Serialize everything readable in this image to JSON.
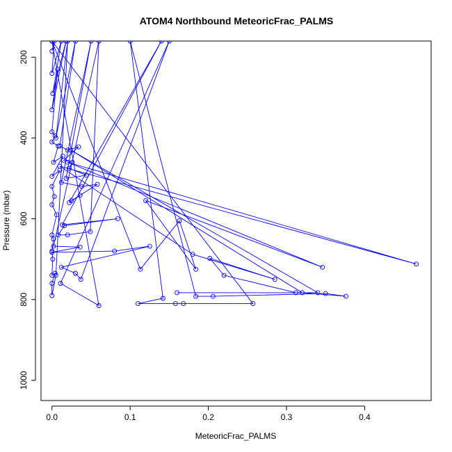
{
  "chart_data": {
    "type": "line",
    "title": "ATOM4 Northbound MeteoricFrac_PALMS",
    "xlabel": "MeteoricFrac_PALMS",
    "ylabel": "Pressure (mbar)",
    "xlim": [
      -0.014,
      0.485
    ],
    "ylim": [
      1050,
      160
    ],
    "y_reversed": true,
    "x_ticks": [
      0.0,
      0.1,
      0.2,
      0.3,
      0.4
    ],
    "x_tick_labels": [
      "0.0",
      "0.1",
      "0.2",
      "0.3",
      "0.4"
    ],
    "y_ticks": [
      200,
      400,
      600,
      800,
      1000
    ],
    "y_tick_labels": [
      "200",
      "400",
      "600",
      "800",
      "1000"
    ],
    "grid": false,
    "colors": {
      "series": "#0000ff",
      "axis": "#000000"
    },
    "series": [
      {
        "points": [
          [
            0.0,
            185
          ],
          [
            0.003,
            160
          ],
          [
            0.0,
            240
          ],
          [
            0.012,
            160
          ],
          [
            0.001,
            290
          ],
          [
            0.018,
            160
          ],
          [
            0.0,
            330
          ],
          [
            0.007,
            230
          ],
          [
            0.0,
            385
          ],
          [
            0.004,
            395
          ],
          [
            0.0,
            410
          ],
          [
            0.008,
            420
          ],
          [
            0.002,
            460
          ],
          [
            0.014,
            445
          ],
          [
            0.0,
            495
          ],
          [
            0.01,
            480
          ],
          [
            0.0,
            520
          ],
          [
            0.003,
            545
          ],
          [
            0.0,
            565
          ],
          [
            0.006,
            590
          ],
          [
            0.0,
            640
          ],
          [
            0.002,
            650
          ],
          [
            0.0,
            680
          ],
          [
            0.001,
            700
          ],
          [
            0.0,
            740
          ],
          [
            0.004,
            735
          ],
          [
            0.0,
            760
          ],
          [
            0.0,
            790
          ],
          [
            0.005,
            740
          ],
          [
            0.02,
            160
          ],
          [
            0.005,
            400
          ],
          [
            0.03,
            160
          ],
          [
            0.01,
            420
          ],
          [
            0.02,
            430
          ],
          [
            0.034,
            422
          ],
          [
            0.015,
            455
          ],
          [
            0.026,
            460
          ],
          [
            0.022,
            475
          ],
          [
            0.044,
            492
          ],
          [
            0.018,
            500
          ],
          [
            0.05,
            160
          ],
          [
            0.012,
            510
          ],
          [
            0.038,
            520
          ],
          [
            0.058,
            515
          ],
          [
            0.025,
            555
          ],
          [
            0.036,
            542
          ],
          [
            0.022,
            560
          ],
          [
            0.14,
            160
          ],
          [
            0.013,
            615
          ],
          [
            0.084,
            600
          ],
          [
            0.016,
            617
          ],
          [
            0.008,
            640
          ],
          [
            0.02,
            640
          ],
          [
            0.049,
            632
          ],
          [
            0.06,
            160
          ],
          [
            0.002,
            668
          ],
          [
            0.036,
            670
          ],
          [
            0.0,
            683
          ],
          [
            0.08,
            680
          ],
          [
            0.125,
            668
          ],
          [
            0.012,
            720
          ],
          [
            0.03,
            735
          ],
          [
            0.037,
            750
          ],
          [
            0.15,
            160
          ],
          [
            0.011,
            760
          ],
          [
            0.06,
            815
          ],
          [
            0.0,
            160
          ],
          [
            0.113,
            725
          ],
          [
            0.163,
            605
          ],
          [
            0.184,
            725
          ],
          [
            0.12,
            555
          ],
          [
            0.346,
            720
          ],
          [
            0.02,
            460
          ],
          [
            0.466,
            712
          ],
          [
            0.01,
            470
          ],
          [
            0.18,
            688
          ],
          [
            0.285,
            750
          ],
          [
            0.202,
            698
          ],
          [
            0.22,
            740
          ],
          [
            0.312,
            783
          ],
          [
            0.16,
            783
          ],
          [
            0.34,
            783
          ],
          [
            0.024,
            430
          ],
          [
            0.32,
            783
          ],
          [
            0.376,
            792
          ],
          [
            0.35,
            785
          ],
          [
            0.206,
            792
          ],
          [
            0.184,
            792
          ],
          [
            0.1,
            160
          ],
          [
            0.142,
            797
          ],
          [
            0.11,
            810
          ],
          [
            0.158,
            810
          ],
          [
            0.168,
            810
          ],
          [
            0.257,
            810
          ],
          [
            0.0,
            160
          ]
        ]
      }
    ]
  }
}
